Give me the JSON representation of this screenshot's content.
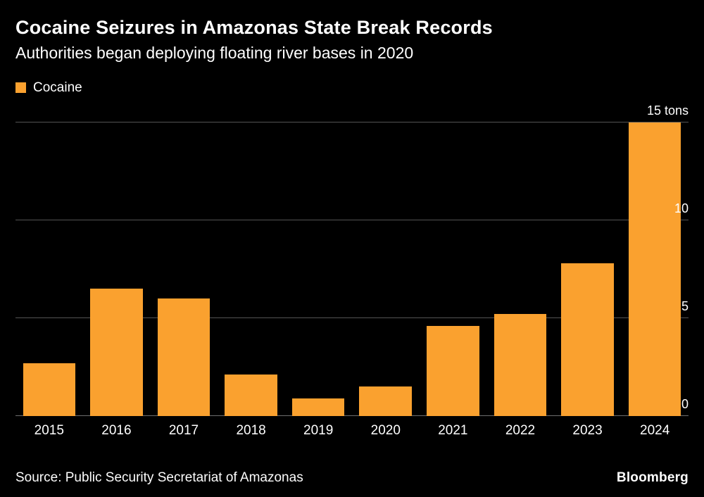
{
  "header": {
    "title": "Cocaine Seizures in Amazonas State Break Records",
    "subtitle": "Authorities began deploying floating river bases in 2020"
  },
  "legend": {
    "label": "Cocaine",
    "color": "#FAA12F"
  },
  "chart_data": {
    "type": "bar",
    "title": "Cocaine Seizures in Amazonas State Break Records",
    "subtitle": "Authorities began deploying floating river bases in 2020",
    "series_name": "Cocaine",
    "categories": [
      "2015",
      "2016",
      "2017",
      "2018",
      "2019",
      "2020",
      "2021",
      "2022",
      "2023",
      "2024"
    ],
    "values": [
      2.7,
      6.5,
      6.0,
      2.1,
      0.9,
      1.5,
      4.6,
      5.2,
      7.8,
      15
    ],
    "unit": "tons",
    "ylim": [
      0,
      15
    ],
    "yticks": [
      0,
      5,
      10,
      15
    ],
    "ytick_labels": [
      "0",
      "5",
      "10",
      "15 tons"
    ],
    "grid": true,
    "legend_position": "top-left",
    "bar_color": "#FAA12F",
    "background": "#000000"
  },
  "footer": {
    "source": "Source: Public Security Secretariat of Amazonas",
    "brand": "Bloomberg"
  }
}
